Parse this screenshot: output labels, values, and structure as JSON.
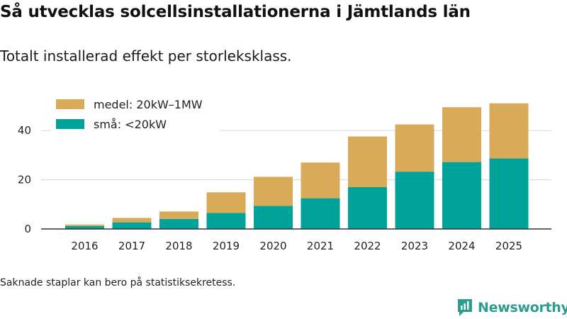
{
  "title": "Så utvecklas solcellsinstallationerna i Jämtlands län",
  "subtitle": "Totalt installerad effekt per storleksklass.",
  "footnote": "Saknade staplar kan bero på statistiksekretess.",
  "brand": {
    "name": "Newsworthy",
    "icon": "newsworthy-logo-icon",
    "color": "#2a9d8f"
  },
  "chart_data": {
    "type": "bar",
    "stacked": true,
    "categories": [
      "2016",
      "2017",
      "2018",
      "2019",
      "2020",
      "2021",
      "2022",
      "2023",
      "2024",
      "2025"
    ],
    "series": [
      {
        "name": "små: <20kW",
        "color": "#00a39a",
        "values": [
          1.2,
          2.7,
          4.1,
          6.5,
          9.4,
          12.5,
          17.0,
          23.3,
          27.2,
          28.7
        ]
      },
      {
        "name": "medel: 20kW–1MW",
        "color": "#d9aa57",
        "values": [
          0.6,
          1.8,
          3.0,
          8.4,
          11.8,
          14.5,
          20.6,
          19.2,
          22.3,
          22.4
        ]
      }
    ],
    "yticks": [
      0,
      20,
      40
    ],
    "ylim": [
      0,
      55
    ],
    "grid": true,
    "legend": "top-left",
    "xlabel": "",
    "ylabel": ""
  }
}
